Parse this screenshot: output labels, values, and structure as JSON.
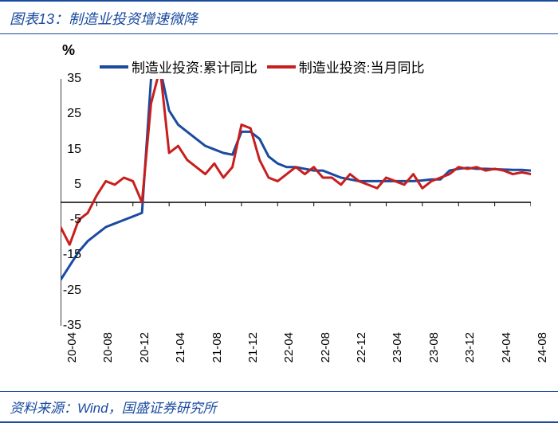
{
  "title": "图表13：制造业投资增速微降",
  "source": "资料来源：Wind，国盛证券研究所",
  "chart": {
    "type": "line",
    "y_unit": "%",
    "ylim": [
      -35,
      35
    ],
    "ytick_step": 10,
    "yticks": [
      -35,
      -25,
      -15,
      -5,
      5,
      15,
      25,
      35
    ],
    "x_labels": [
      "20-04",
      "20-08",
      "20-12",
      "21-04",
      "21-08",
      "21-12",
      "22-04",
      "22-08",
      "22-12",
      "23-04",
      "23-08",
      "23-12",
      "24-04",
      "24-08"
    ],
    "x_positions_months": [
      0,
      4,
      8,
      12,
      16,
      20,
      24,
      28,
      32,
      36,
      40,
      44,
      48,
      52
    ],
    "x_total_months": 52,
    "background_color": "#ffffff",
    "axis_color": "#000000",
    "tick_fontsize": 16,
    "line_width": 3,
    "title_color": "#1a4ba0",
    "border_color": "#1a4ba0",
    "legend": {
      "position": "top",
      "fontsize": 17
    },
    "series": [
      {
        "name": "制造业投资:累计同比",
        "color": "#1a4ba0",
        "data_months": [
          0,
          1,
          2,
          3,
          4,
          5,
          6,
          7,
          8,
          9,
          10,
          11,
          12,
          13,
          14,
          15,
          16,
          17,
          18,
          19,
          20,
          21,
          22,
          23,
          24,
          25,
          26,
          27,
          28,
          29,
          30,
          31,
          32,
          33,
          34,
          35,
          36,
          37,
          38,
          39,
          40,
          41,
          42,
          43,
          44,
          45,
          46,
          47,
          48,
          49,
          50,
          51,
          52
        ],
        "values": [
          -22,
          -18,
          -14,
          -11,
          -9,
          -7,
          -6,
          -5,
          -4,
          -3,
          35,
          38,
          26,
          22,
          20,
          18,
          16,
          15,
          14,
          13.5,
          20,
          20,
          18,
          13,
          11,
          10,
          10,
          9.5,
          9,
          9,
          8,
          7,
          6.5,
          6,
          6,
          6,
          6,
          6,
          6,
          6,
          6.2,
          6.5,
          6.5,
          9,
          9.5,
          9.8,
          9.5,
          9.5,
          9.4,
          9.3,
          9.2,
          9.2,
          9
        ]
      },
      {
        "name": "制造业投资:当月同比",
        "color": "#c81e1e",
        "data_months": [
          0,
          1,
          2,
          3,
          4,
          5,
          6,
          7,
          8,
          9,
          10,
          11,
          12,
          13,
          14,
          15,
          16,
          17,
          18,
          19,
          20,
          21,
          22,
          23,
          24,
          25,
          26,
          27,
          28,
          29,
          30,
          31,
          32,
          33,
          34,
          35,
          36,
          37,
          38,
          39,
          40,
          41,
          42,
          43,
          44,
          45,
          46,
          47,
          48,
          49,
          50,
          51,
          52
        ],
        "values": [
          -7,
          -12,
          -5,
          -3,
          2,
          6,
          5,
          7,
          6,
          0,
          28,
          38,
          14,
          16,
          12,
          10,
          8,
          11,
          7,
          10,
          22,
          21,
          12,
          7,
          6,
          8,
          10,
          8,
          10,
          7,
          7,
          5,
          8,
          6,
          5,
          4,
          7,
          6,
          5,
          8,
          4,
          6,
          7,
          8,
          10,
          9.5,
          10,
          9,
          9.5,
          9,
          8,
          8.5,
          8
        ]
      }
    ]
  }
}
